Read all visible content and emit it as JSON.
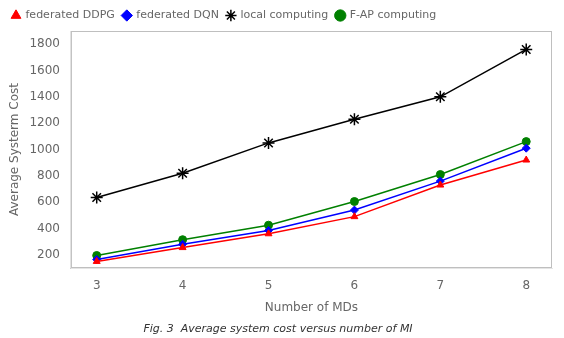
{
  "chart_data": {
    "type": "line",
    "caption": "Fig. 3  Average system cost versus number of MI",
    "xlabel": "Number of MDs",
    "ylabel": "Average Systerm Cost",
    "x": [
      3,
      4,
      5,
      6,
      7,
      8
    ],
    "series": [
      {
        "name": "federated DDPG",
        "color": "#FF0000",
        "marker": "triangle",
        "values": [
          150,
          255,
          360,
          490,
          730,
          920
        ]
      },
      {
        "name": "federated DQN",
        "color": "#0000FF",
        "marker": "diamond",
        "values": [
          165,
          280,
          385,
          540,
          760,
          1010
        ]
      },
      {
        "name": "local computing",
        "color": "#000000",
        "marker": "star",
        "values": [
          635,
          820,
          1050,
          1230,
          1400,
          1760
        ]
      },
      {
        "name": "F-AP computing",
        "color": "#008000",
        "marker": "circle",
        "values": [
          195,
          315,
          425,
          605,
          810,
          1060
        ]
      }
    ],
    "xlim": [
      2.7,
      8.3
    ],
    "xticks": [
      3,
      4,
      5,
      6,
      7,
      8
    ],
    "ylim": [
      100,
      1900
    ],
    "yticks": [
      200,
      400,
      600,
      800,
      1000,
      1200,
      1400,
      1600,
      1800
    ],
    "grid": false,
    "legend": "upper left"
  }
}
